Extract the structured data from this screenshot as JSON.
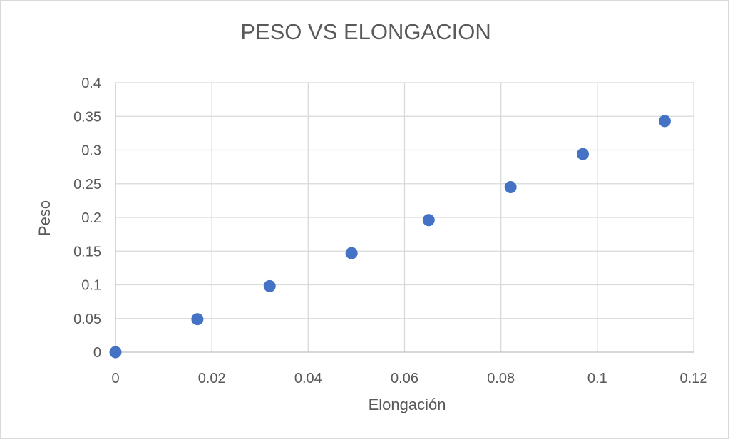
{
  "chart_data": {
    "type": "scatter",
    "title": "PESO VS ELONGACION",
    "xlabel": "Elongación",
    "ylabel": "Peso",
    "xlim": [
      0,
      0.12
    ],
    "ylim": [
      0,
      0.4
    ],
    "x_ticks": [
      "0",
      "0.02",
      "0.04",
      "0.06",
      "0.08",
      "0.1",
      "0.12"
    ],
    "y_ticks": [
      "0",
      "0.05",
      "0.1",
      "0.15",
      "0.2",
      "0.25",
      "0.3",
      "0.35",
      "0.4"
    ],
    "grid": true,
    "legend": "none",
    "series": [
      {
        "color": "#4472c4",
        "x": [
          0,
          0.017,
          0.032,
          0.049,
          0.065,
          0.082,
          0.097,
          0.114
        ],
        "y": [
          0,
          0.049,
          0.098,
          0.147,
          0.196,
          0.245,
          0.294,
          0.343
        ]
      }
    ]
  }
}
